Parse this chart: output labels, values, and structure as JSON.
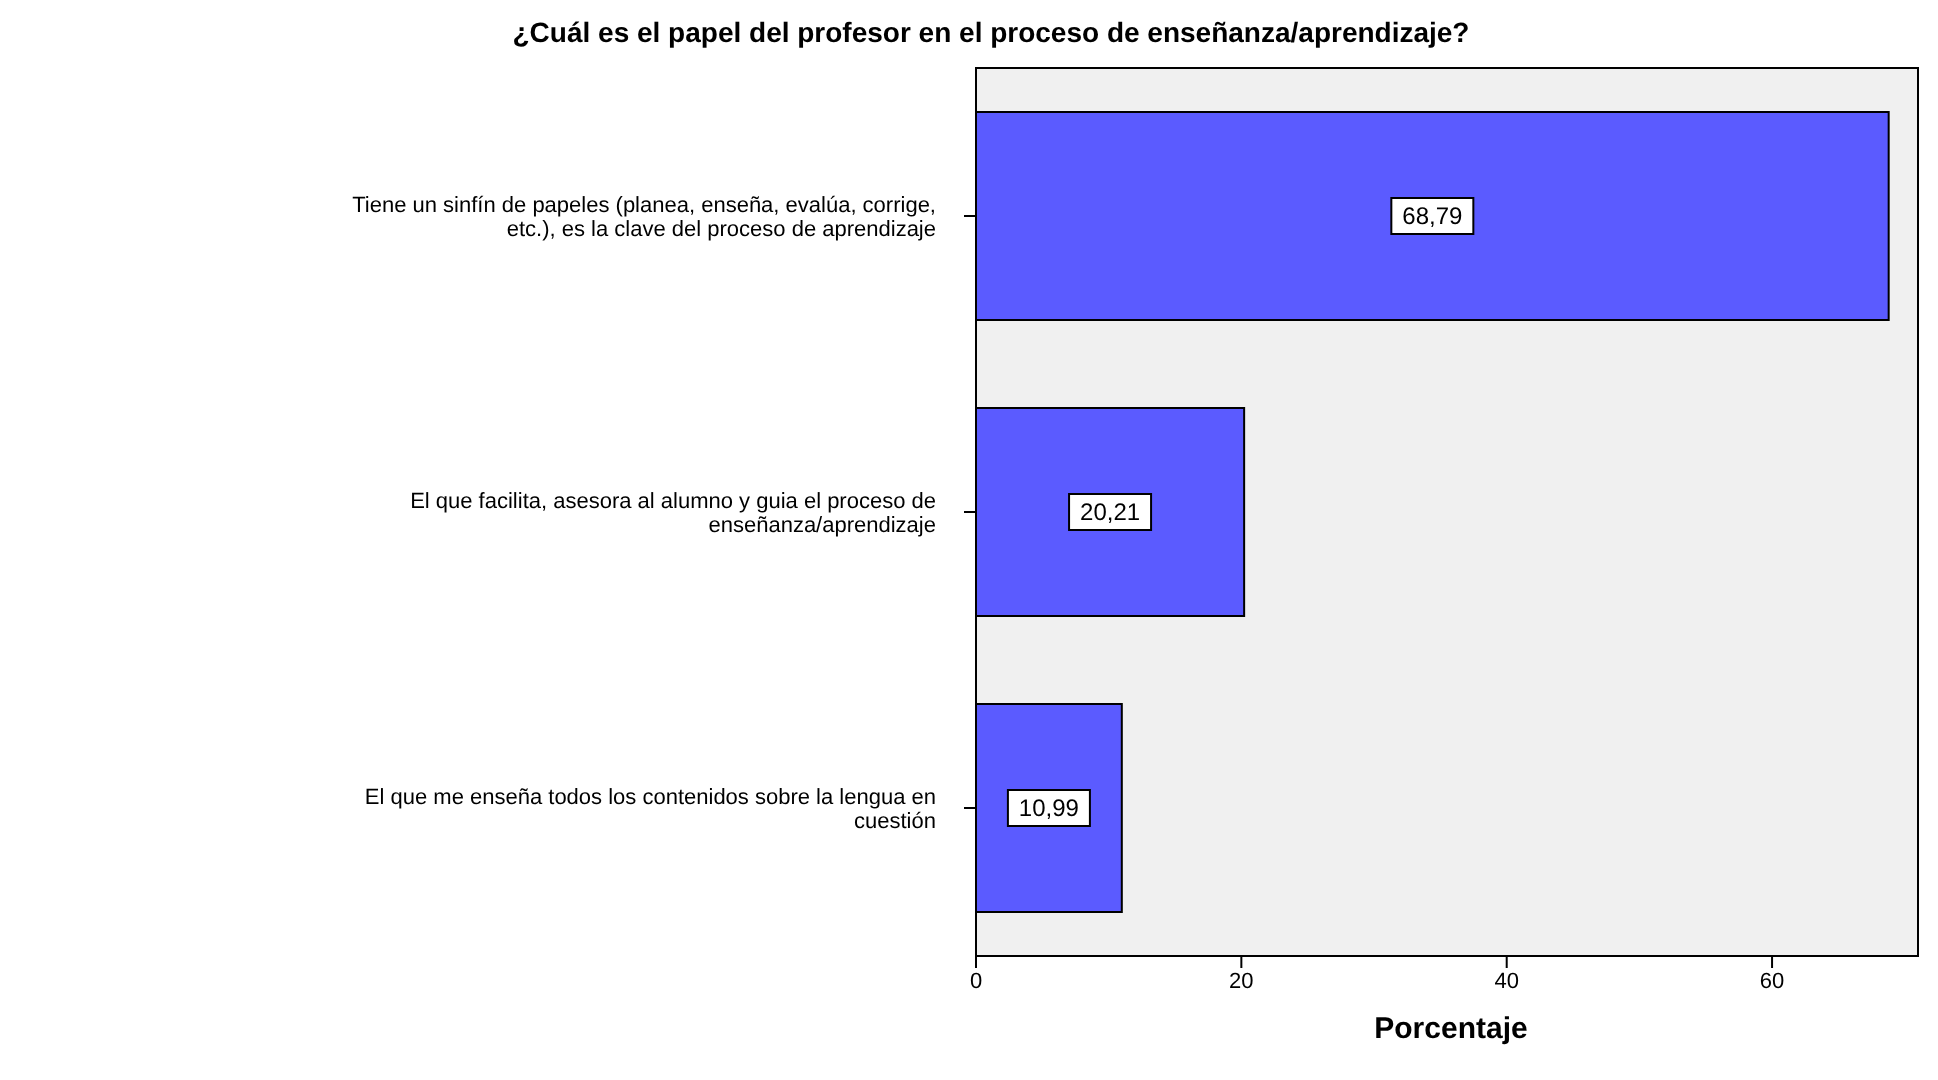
{
  "chart_data": {
    "type": "bar",
    "orientation": "horizontal",
    "title": "¿Cuál es el papel del profesor en el proceso de enseñanza/aprendizaje?",
    "xlabel": "Porcentaje",
    "categories": [
      "Tiene un sinfín de papeles (planea, enseña, evalúa, corrige, etc.), es la clave del proceso de aprendizaje",
      "El que facilita, asesora al alumno y guia el proceso de enseñanza/aprendizaje",
      "El que me enseña todos los contenidos sobre la lengua en cuestión"
    ],
    "values": [
      68.79,
      20.21,
      10.99
    ],
    "value_labels": [
      "68,79",
      "20,21",
      "10,99"
    ],
    "color": "#5b5bff",
    "xlim": [
      0,
      71
    ],
    "xticks": [
      0,
      20,
      40,
      60
    ]
  }
}
